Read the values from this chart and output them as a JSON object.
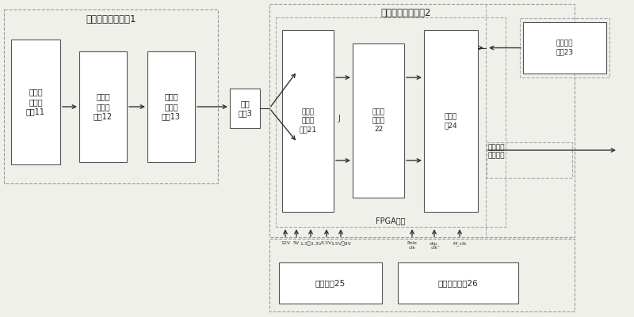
{
  "bg_color": "#f0f0eb",
  "title_device1": "实时信道控制装置1",
  "title_device2": "实时信道模拟装置2",
  "block11_text": "仿真参\n数设置\n模块11",
  "block12_text": "误码转\n发结果\n模块12",
  "block13_text": "误码率\n统计算\n模块13",
  "block_channel3_text": "通信\n接口3",
  "block21_text": "信道特\n性产生\n模块21",
  "block22_text": "误码叠\n加模块\n22",
  "block24_text": "收发单\n元24",
  "block23_text": "先派码数\n据源23",
  "block25_text": "电源电路25",
  "block26_text": "时钟分配电路26",
  "fpga_text": "FPGA芯片",
  "link_text": "链路仿真\n误码图案",
  "power_labels": [
    "12V",
    "5V",
    "1.3、3.3V",
    "3.3V",
    "1.5V、8V"
  ],
  "clock_labels": [
    "Pole\nclk",
    "dtp_\nclk",
    "M_clk"
  ]
}
